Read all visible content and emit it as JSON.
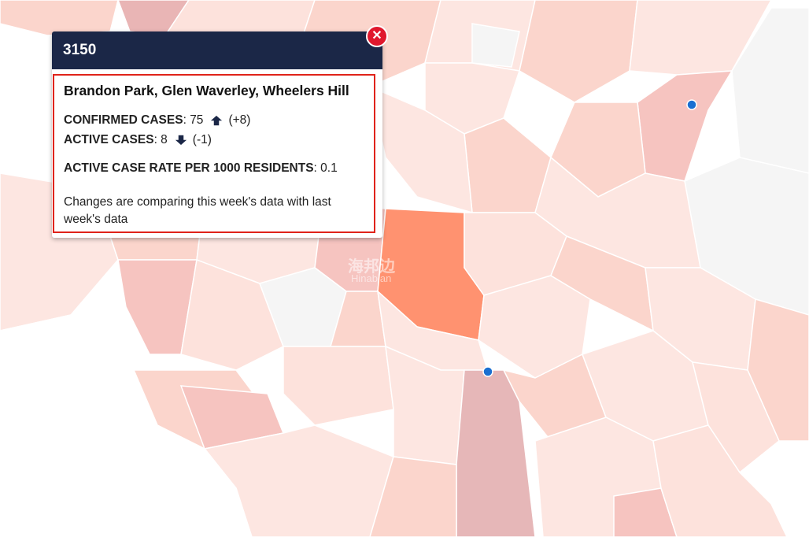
{
  "popup": {
    "title": "3150",
    "suburbs": "Brandon Park, Glen Waverley, Wheelers Hill",
    "stats": [
      {
        "label": "CONFIRMED CASES",
        "value": ": 75",
        "change": "(+8)"
      },
      {
        "label": "ACTIVE CASES",
        "value": ": 8",
        "change": "(-1)"
      },
      {
        "label": "ACTIVE CASE RATE PER 1000 RESIDENTS",
        "value": ": 0.1"
      }
    ],
    "note": "Changes are comparing this week's data with last week's data"
  },
  "watermark": {
    "text": "海邦边",
    "subtext": "Hinabian"
  }
}
